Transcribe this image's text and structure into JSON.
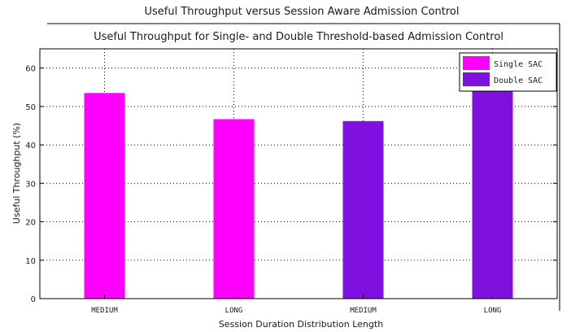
{
  "chart_data": {
    "type": "bar",
    "title": "Useful Throughput versus Session Aware Admission Control",
    "subtitle": "Useful Throughput for Single- and Double Threshold-based Admission Control",
    "xlabel": "Session Duration Distribution Length",
    "ylabel": "Useful Throughput (%)",
    "categories": [
      "MEDIUM",
      "LONG",
      "MEDIUM",
      "LONG"
    ],
    "values": [
      53.5,
      46.7,
      46.2,
      54.0
    ],
    "series_of_bar": [
      0,
      0,
      1,
      1
    ],
    "series": [
      {
        "name": "Single SAC",
        "color": "#ff00ff"
      },
      {
        "name": "Double SAC",
        "color": "#8010e0"
      }
    ],
    "ylim": [
      0,
      65
    ],
    "yticks": [
      0,
      10,
      20,
      30,
      40,
      50,
      60
    ],
    "grid": true,
    "legend_position": "top-right"
  }
}
